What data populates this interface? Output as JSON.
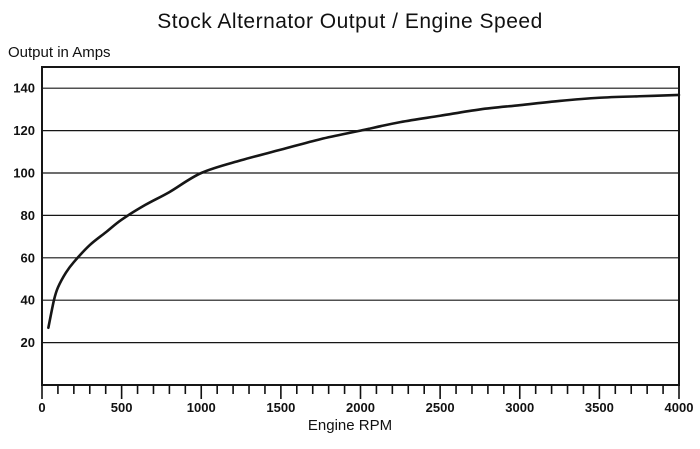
{
  "page": {
    "background": "#ffffff",
    "ink_color": "#161616"
  },
  "chart_data": {
    "type": "line",
    "title": "Stock Alternator Output / Engine Speed",
    "xlabel": "Engine RPM",
    "ylabel": "Output in Amps",
    "xlim": [
      0,
      4000
    ],
    "ylim": [
      0,
      150
    ],
    "x_major_ticks": [
      0,
      500,
      1000,
      1500,
      2000,
      2500,
      3000,
      3500,
      4000
    ],
    "x_minor_step": 100,
    "y_gridlines": [
      20,
      40,
      60,
      80,
      100,
      120,
      140
    ],
    "grid": true,
    "legend": "none",
    "line_color": "#161616",
    "series": [
      {
        "name": "Stock alternator output (Amps)",
        "x": [
          40,
          75,
          100,
          150,
          200,
          300,
          400,
          500,
          650,
          800,
          1000,
          1250,
          1500,
          1750,
          2000,
          2250,
          2500,
          2750,
          3000,
          3250,
          3500,
          3750,
          4000
        ],
        "y": [
          27,
          40,
          46,
          53,
          58,
          66,
          72,
          78,
          85,
          91,
          100,
          106,
          111,
          116,
          120,
          124,
          127,
          130,
          132,
          134,
          135.5,
          136.2,
          136.8
        ]
      }
    ]
  }
}
